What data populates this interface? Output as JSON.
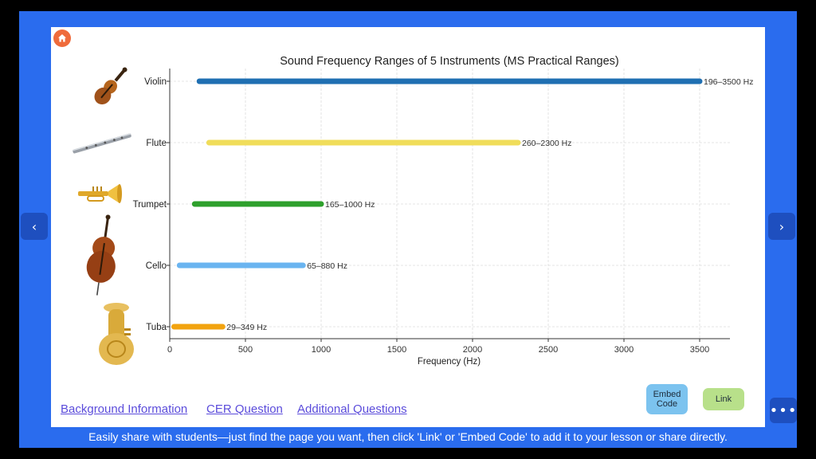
{
  "nav": {
    "prev_glyph": "‹",
    "next_glyph": "›",
    "menu_glyph": "•••"
  },
  "chart_data": {
    "type": "bar",
    "title": "Sound Frequency Ranges of 5 Instruments (MS Practical Ranges)",
    "xlabel": "Frequency (Hz)",
    "ylabel": "",
    "xlim": [
      0,
      3700
    ],
    "xticks": [
      0,
      500,
      1000,
      1500,
      2000,
      2500,
      3000,
      3500
    ],
    "grid": true,
    "orientation": "horizontal-range",
    "series": [
      {
        "instrument": "Violin",
        "low": 196,
        "high": 3500,
        "label": "196–3500 Hz",
        "color": "#1f6fb2",
        "icon": "violin-icon"
      },
      {
        "instrument": "Flute",
        "low": 260,
        "high": 2300,
        "label": "260–2300 Hz",
        "color": "#f0dd5a",
        "icon": "flute-icon"
      },
      {
        "instrument": "Trumpet",
        "low": 165,
        "high": 1000,
        "label": "165–1000 Hz",
        "color": "#2ea02c",
        "icon": "trumpet-icon"
      },
      {
        "instrument": "Cello",
        "low": 65,
        "high": 880,
        "label": "65–880 Hz",
        "color": "#6ab4f0",
        "icon": "cello-icon"
      },
      {
        "instrument": "Tuba",
        "low": 29,
        "high": 349,
        "label": "29–349 Hz",
        "color": "#f2a30f",
        "icon": "tuba-icon"
      }
    ]
  },
  "links": {
    "background": "Background Information",
    "cer": "CER Question",
    "additional": "Additional Questions"
  },
  "buttons": {
    "embed_line1": "Embed",
    "embed_line2": "Code",
    "link": "Link"
  },
  "caption": "Easily share with students—just find the page you want, then click 'Link' or 'Embed Code' to add it to your lesson or share directly.",
  "colors": {
    "frame": "#2a6cee",
    "home": "#ef6b3b",
    "embed": "#7cc3ef",
    "link": "#b8e08a"
  }
}
